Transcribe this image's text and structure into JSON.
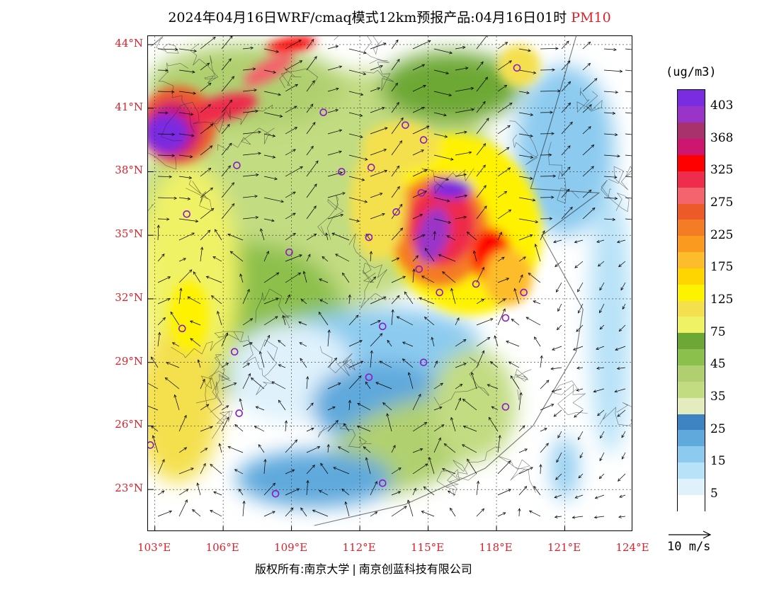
{
  "title": {
    "main": "2024年04月16日WRF/cmaq模式12km预报产品:04月16日01时",
    "pollutant": "PM10"
  },
  "map": {
    "lon_range": [
      102.7,
      124.0
    ],
    "lat_range": [
      21.0,
      44.4
    ],
    "lat_ticks": [
      {
        "value": 44,
        "label": "44°N"
      },
      {
        "value": 41,
        "label": "41°N"
      },
      {
        "value": 38,
        "label": "38°N"
      },
      {
        "value": 35,
        "label": "35°N"
      },
      {
        "value": 32,
        "label": "32°N"
      },
      {
        "value": 29,
        "label": "29°N"
      },
      {
        "value": 26,
        "label": "26°N"
      },
      {
        "value": 23,
        "label": "23°N"
      }
    ],
    "lon_ticks": [
      {
        "value": 103,
        "label": "103°E"
      },
      {
        "value": 106,
        "label": "106°E"
      },
      {
        "value": 109,
        "label": "109°E"
      },
      {
        "value": 112,
        "label": "112°E"
      },
      {
        "value": 115,
        "label": "115°E"
      },
      {
        "value": 118,
        "label": "118°E"
      },
      {
        "value": 121,
        "label": "121°E"
      },
      {
        "value": 124,
        "label": "124°E"
      }
    ],
    "cities": [
      {
        "lon": 118.9,
        "lat": 42.9
      },
      {
        "lon": 110.4,
        "lat": 40.8
      },
      {
        "lon": 114.0,
        "lat": 40.2
      },
      {
        "lon": 114.8,
        "lat": 39.5
      },
      {
        "lon": 106.6,
        "lat": 38.3
      },
      {
        "lon": 111.2,
        "lat": 38.0
      },
      {
        "lon": 112.5,
        "lat": 38.2
      },
      {
        "lon": 104.4,
        "lat": 36.0
      },
      {
        "lon": 114.7,
        "lat": 37.0
      },
      {
        "lon": 113.6,
        "lat": 36.1
      },
      {
        "lon": 112.4,
        "lat": 34.9
      },
      {
        "lon": 108.9,
        "lat": 34.2
      },
      {
        "lon": 114.6,
        "lat": 33.4
      },
      {
        "lon": 117.1,
        "lat": 32.7
      },
      {
        "lon": 115.5,
        "lat": 32.3
      },
      {
        "lon": 119.2,
        "lat": 32.3
      },
      {
        "lon": 118.4,
        "lat": 31.1
      },
      {
        "lon": 104.2,
        "lat": 30.6
      },
      {
        "lon": 113.0,
        "lat": 30.7
      },
      {
        "lon": 106.5,
        "lat": 29.5
      },
      {
        "lon": 114.8,
        "lat": 29.0
      },
      {
        "lon": 112.4,
        "lat": 28.3
      },
      {
        "lon": 118.4,
        "lat": 26.9
      },
      {
        "lon": 106.7,
        "lat": 26.6
      },
      {
        "lon": 102.8,
        "lat": 25.1
      },
      {
        "lon": 113.0,
        "lat": 23.3
      },
      {
        "lon": 108.3,
        "lat": 22.8
      }
    ]
  },
  "colorbar": {
    "unit": "(ug/m3)",
    "colors": [
      "#ffffff",
      "#dff2fc",
      "#b8e2f8",
      "#8ccbef",
      "#5fa9dc",
      "#3f84c2",
      "#e4ecbe",
      "#c2dc82",
      "#b0d070",
      "#8cc04c",
      "#6da836",
      "#f0f266",
      "#f4e04e",
      "#fff200",
      "#ffd500",
      "#fdbc2c",
      "#fa9a1e",
      "#f47c24",
      "#ec5a2a",
      "#f4646c",
      "#ee2c4c",
      "#ff0000",
      "#cc1670",
      "#a8326c",
      "#9a34c8",
      "#7a2ce0"
    ],
    "labels": [
      "5",
      "15",
      "25",
      "35",
      "45",
      "75",
      "125",
      "175",
      "225",
      "275",
      "325",
      "368",
      "403"
    ]
  },
  "wind_legend": {
    "label": "10 m/s"
  },
  "copyright": {
    "owner": "版权所有:南京大学",
    "partner": "南京创蓝科技有限公司"
  }
}
